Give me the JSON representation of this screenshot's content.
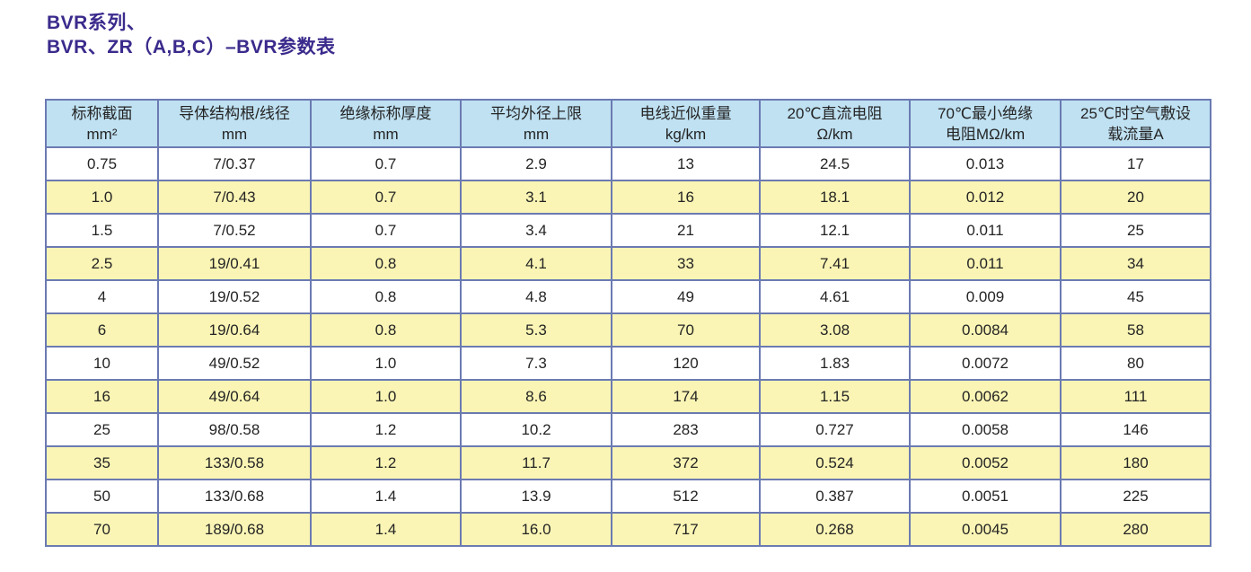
{
  "title": {
    "line1": "BVR系列、",
    "line2": "BVR、ZR（A,B,C）–BVR参数表",
    "color": "#3b2a8c"
  },
  "table": {
    "colors": {
      "header_bg": "#bfe1f2",
      "row_bg": "#ffffff",
      "row_alt_bg": "#faf5b5",
      "border": "#6b7ab2",
      "title_text": "#3b2a8c"
    },
    "columns": [
      {
        "line1": "标称截面",
        "line2": "mm²"
      },
      {
        "line1": "导体结构根/线径",
        "line2": "mm"
      },
      {
        "line1": "绝缘标称厚度",
        "line2": "mm"
      },
      {
        "line1": "平均外径上限",
        "line2": "mm"
      },
      {
        "line1": "电线近似重量",
        "line2": "kg/km"
      },
      {
        "line1": "20℃直流电阻",
        "line2": "Ω/km"
      },
      {
        "line1": "70℃最小绝缘",
        "line2": "电阻MΩ/km"
      },
      {
        "line1": "25℃时空气敷设",
        "line2": "载流量A"
      }
    ],
    "rows": [
      [
        "0.75",
        "7/0.37",
        "0.7",
        "2.9",
        "13",
        "24.5",
        "0.013",
        "17"
      ],
      [
        "1.0",
        "7/0.43",
        "0.7",
        "3.1",
        "16",
        "18.1",
        "0.012",
        "20"
      ],
      [
        "1.5",
        "7/0.52",
        "0.7",
        "3.4",
        "21",
        "12.1",
        "0.011",
        "25"
      ],
      [
        "2.5",
        "19/0.41",
        "0.8",
        "4.1",
        "33",
        "7.41",
        "0.011",
        "34"
      ],
      [
        "4",
        "19/0.52",
        "0.8",
        "4.8",
        "49",
        "4.61",
        "0.009",
        "45"
      ],
      [
        "6",
        "19/0.64",
        "0.8",
        "5.3",
        "70",
        "3.08",
        "0.0084",
        "58"
      ],
      [
        "10",
        "49/0.52",
        "1.0",
        "7.3",
        "120",
        "1.83",
        "0.0072",
        "80"
      ],
      [
        "16",
        "49/0.64",
        "1.0",
        "8.6",
        "174",
        "1.15",
        "0.0062",
        "111"
      ],
      [
        "25",
        "98/0.58",
        "1.2",
        "10.2",
        "283",
        "0.727",
        "0.0058",
        "146"
      ],
      [
        "35",
        "133/0.58",
        "1.2",
        "11.7",
        "372",
        "0.524",
        "0.0052",
        "180"
      ],
      [
        "50",
        "133/0.68",
        "1.4",
        "13.9",
        "512",
        "0.387",
        "0.0051",
        "225"
      ],
      [
        "70",
        "189/0.68",
        "1.4",
        "16.0",
        "717",
        "0.268",
        "0.0045",
        "280"
      ]
    ]
  }
}
